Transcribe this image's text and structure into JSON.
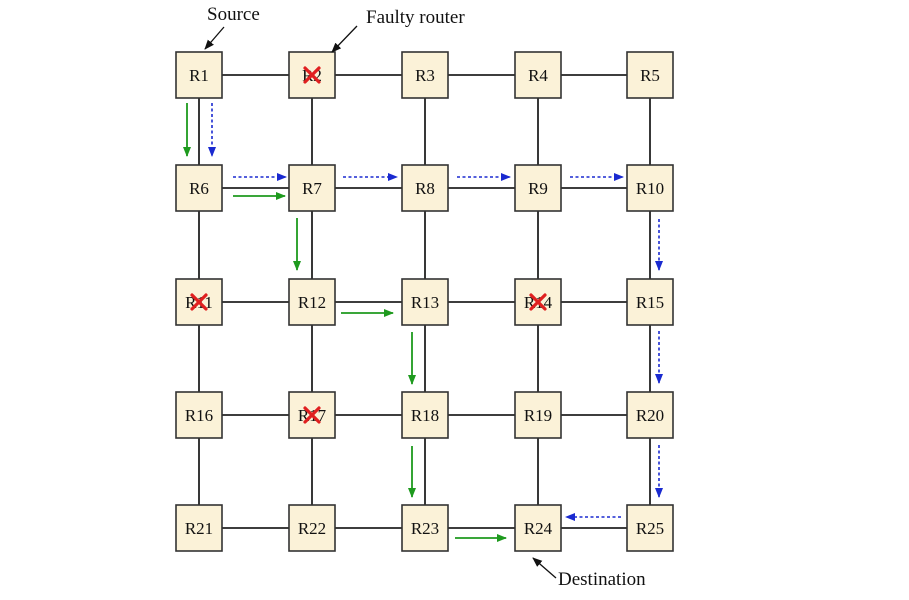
{
  "annotations": {
    "source": "Source",
    "faulty": "Faulty router",
    "destination": "Destination"
  },
  "routers": [
    {
      "id": "R1",
      "label": "R1"
    },
    {
      "id": "R2",
      "label": "R2"
    },
    {
      "id": "R3",
      "label": "R3"
    },
    {
      "id": "R4",
      "label": "R4"
    },
    {
      "id": "R5",
      "label": "R5"
    },
    {
      "id": "R6",
      "label": "R6"
    },
    {
      "id": "R7",
      "label": "R7"
    },
    {
      "id": "R8",
      "label": "R8"
    },
    {
      "id": "R9",
      "label": "R9"
    },
    {
      "id": "R10",
      "label": "R10"
    },
    {
      "id": "R11",
      "label": "R11"
    },
    {
      "id": "R12",
      "label": "R12"
    },
    {
      "id": "R13",
      "label": "R13"
    },
    {
      "id": "R14",
      "label": "R14"
    },
    {
      "id": "R15",
      "label": "R15"
    },
    {
      "id": "R16",
      "label": "R16"
    },
    {
      "id": "R17",
      "label": "R17"
    },
    {
      "id": "R18",
      "label": "R18"
    },
    {
      "id": "R19",
      "label": "R19"
    },
    {
      "id": "R20",
      "label": "R20"
    },
    {
      "id": "R21",
      "label": "R21"
    },
    {
      "id": "R22",
      "label": "R22"
    },
    {
      "id": "R23",
      "label": "R23"
    },
    {
      "id": "R24",
      "label": "R24"
    },
    {
      "id": "R25",
      "label": "R25"
    }
  ],
  "faulty_routers": [
    "R2",
    "R11",
    "R14",
    "R17"
  ],
  "source_router": "R1",
  "destination_router": "R24",
  "colors": {
    "solid_path": "#1e9a1e",
    "dashed_path": "#1a2ad0",
    "fault_mark": "#e02020",
    "router_fill": "#fbf2d8"
  }
}
